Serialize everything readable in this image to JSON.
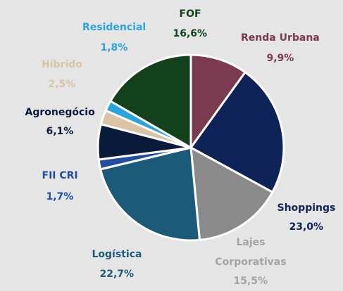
{
  "chart_data": {
    "type": "pie",
    "categories": [
      "Renda Urbana",
      "Shoppings",
      "Lajes Corporativas",
      "Logística",
      "FII CRI",
      "Agronegócio",
      "Híbrido",
      "Residencial",
      "FOF"
    ],
    "values": [
      9.9,
      23.0,
      15.5,
      22.7,
      1.7,
      6.1,
      2.5,
      1.8,
      16.6
    ],
    "value_labels": [
      "9,9%",
      "23,0%",
      "15,5%",
      "22,7%",
      "1,7%",
      "6,1%",
      "2,5%",
      "1,8%",
      "16,6%"
    ],
    "colors": [
      "#7a3a4f",
      "#0e2459",
      "#8a8a8a",
      "#1b5a79",
      "#1f4fa2",
      "#0a1a3b",
      "#d9c4a6",
      "#2aa4dd",
      "#13411b"
    ],
    "label_colors": [
      "#7a3a4f",
      "#0e2459",
      "#a3a3a3",
      "#1b5a79",
      "#1f4fa2",
      "#0a1a3b",
      "#d9c4a6",
      "#2aa4dd",
      "#13411b"
    ]
  }
}
